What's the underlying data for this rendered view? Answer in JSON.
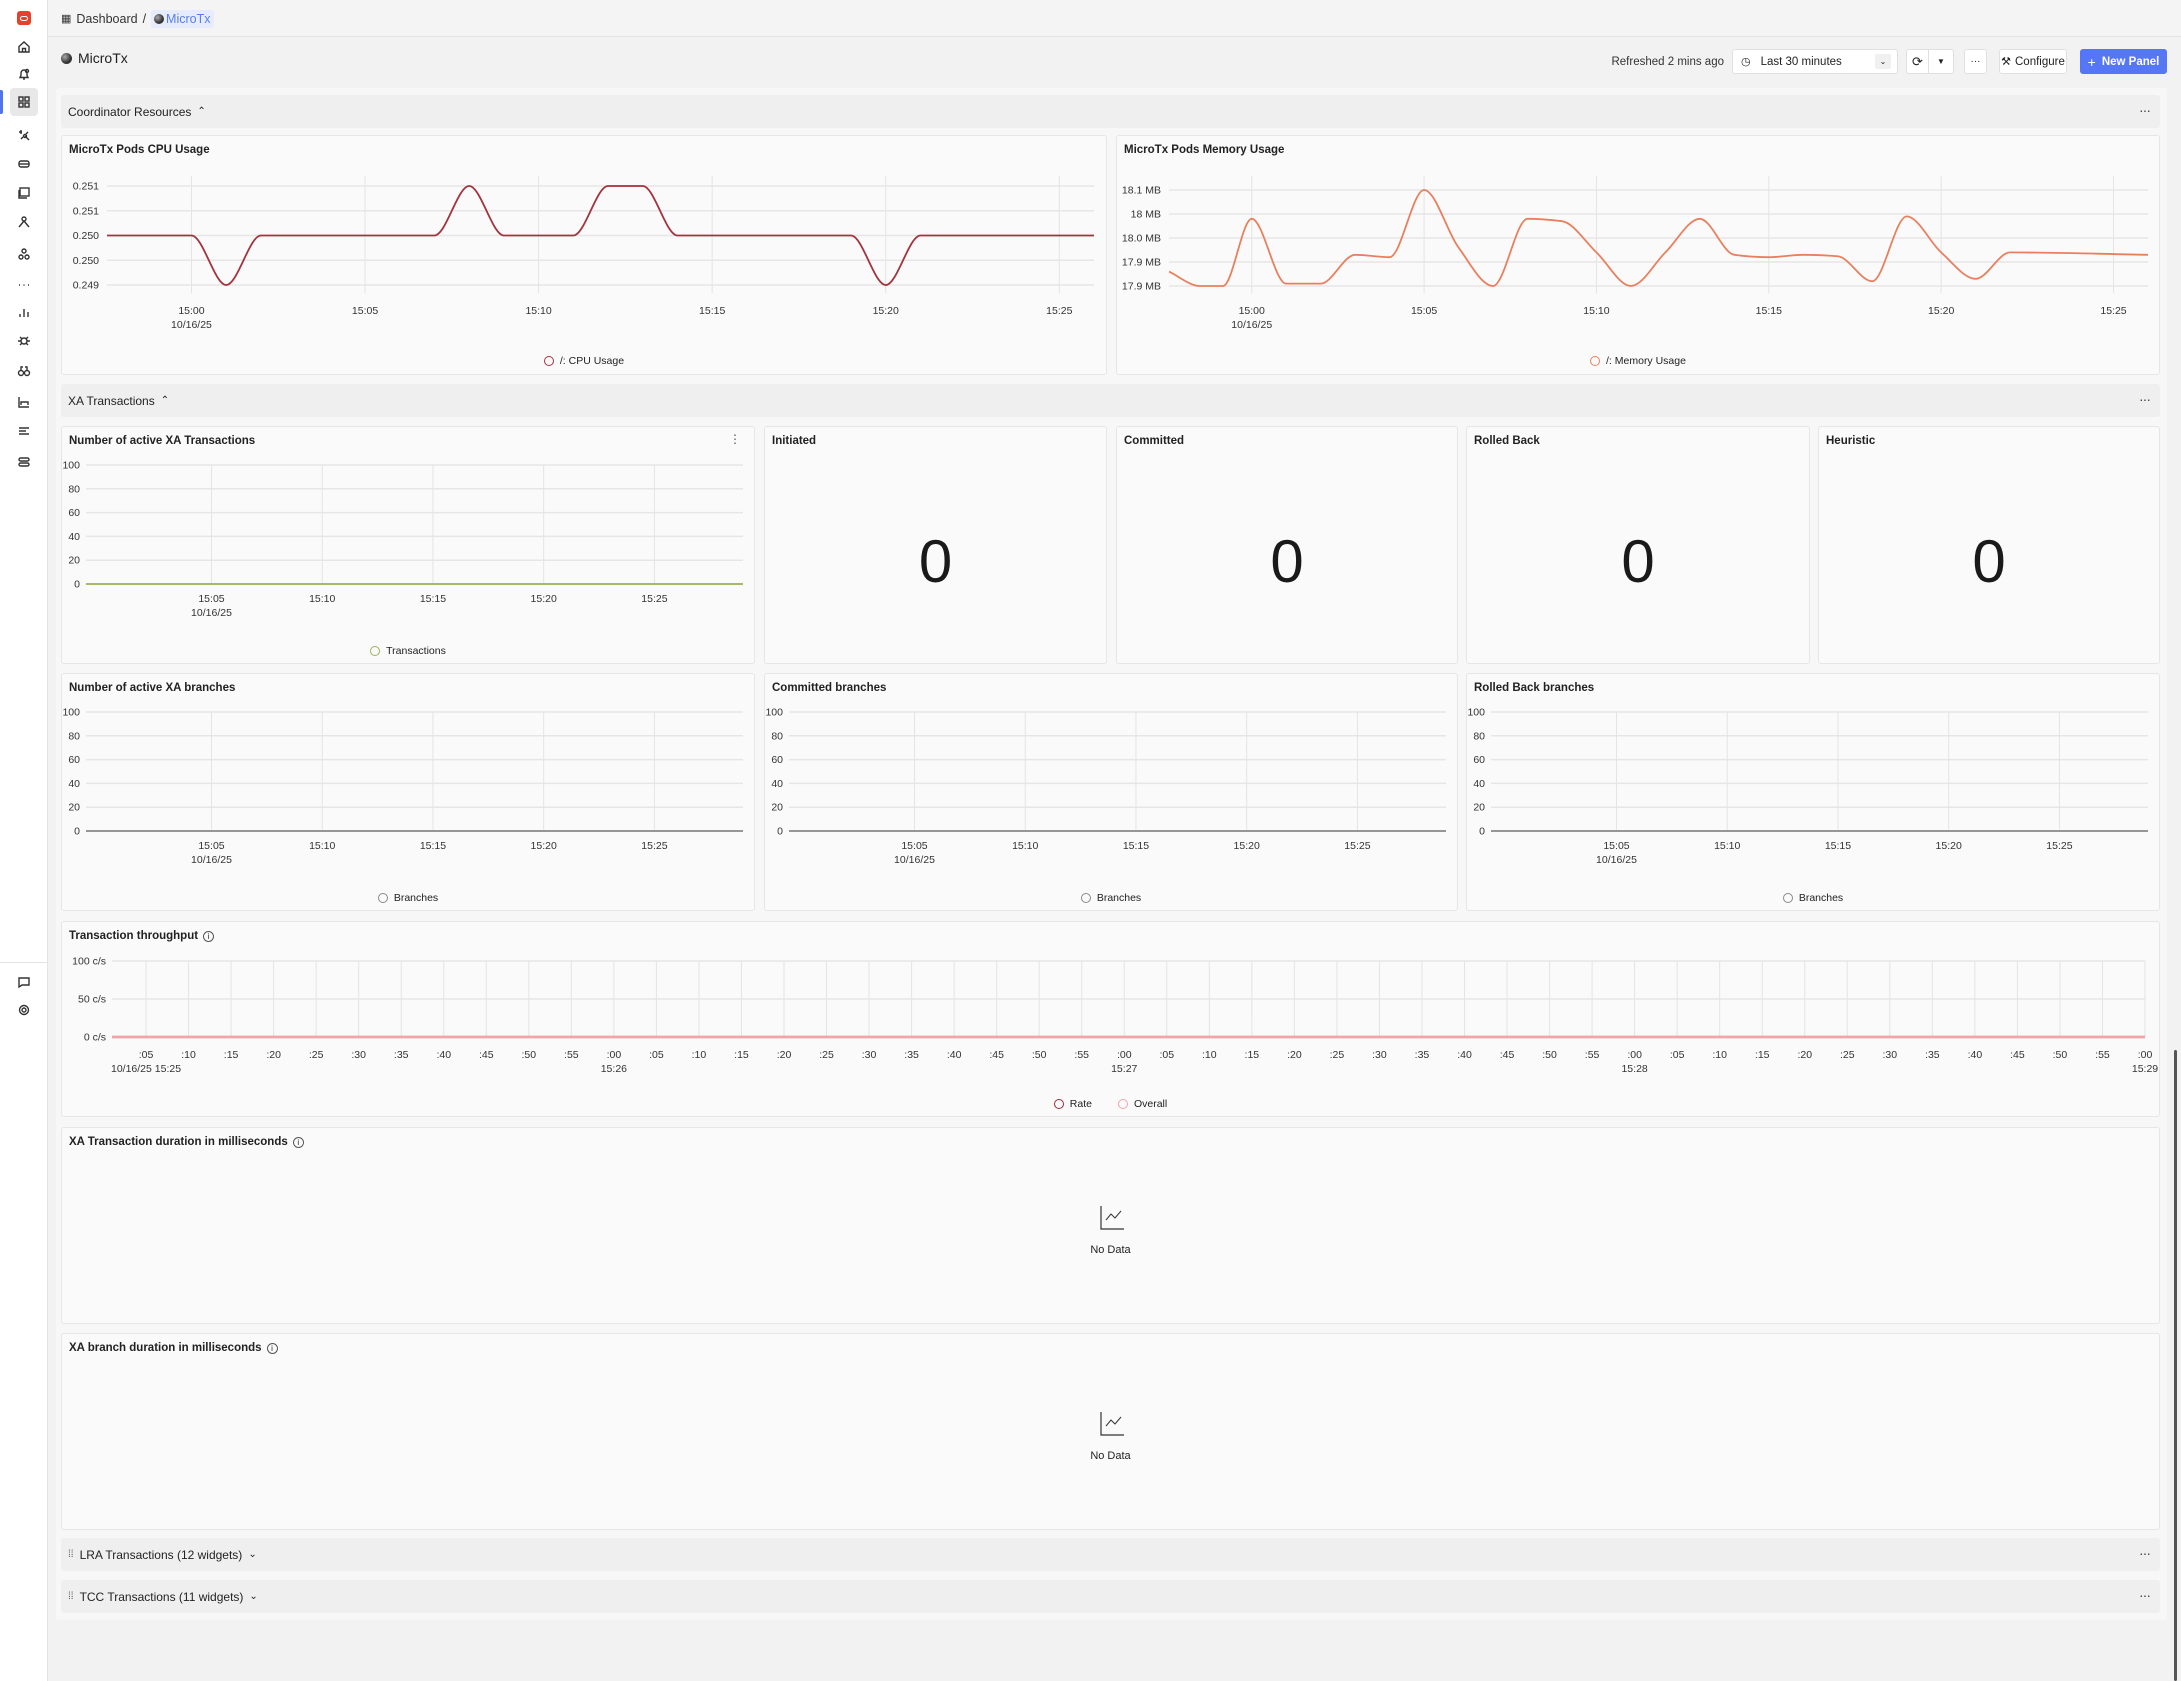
{
  "breadcrumb": {
    "root": "Dashboard",
    "separator": "/",
    "current": "MicroTx"
  },
  "page_title": "MicroTx",
  "toolbar": {
    "refreshed": "Refreshed 2 mins ago",
    "time_range": "Last 30 minutes",
    "more": "···",
    "configure": "Configure",
    "new_panel": "New Panel",
    "accent": "#5677f5"
  },
  "sidebar": {
    "items": [
      "logo",
      "home-icon",
      "alerts-icon",
      "dashboards-icon",
      "explore-icon",
      "infra-icon",
      "logs-icon",
      "traces-icon",
      "services-icon",
      "more-icon",
      "metrics-icon",
      "exceptions-icon",
      "binoculars-icon",
      "charts-icon",
      "list-icon",
      "pipelines-icon"
    ],
    "bottom": [
      "chat-icon",
      "settings-icon"
    ],
    "active": "dashboards-icon"
  },
  "rows": {
    "coordinator": "Coordinator Resources",
    "xa": "XA Transactions",
    "lra": "LRA Transactions (12 widgets)",
    "tcc": "TCC Transactions (11 widgets)",
    "more": "···"
  },
  "panels": {
    "cpu": {
      "title": "MicroTx Pods CPU Usage"
    },
    "mem": {
      "title": "MicroTx Pods Memory Usage"
    },
    "xa_active": {
      "title": "Number of active XA Transactions"
    },
    "initiated": {
      "title": "Initiated",
      "value": "0"
    },
    "committed": {
      "title": "Committed",
      "value": "0"
    },
    "rolled_back": {
      "title": "Rolled Back",
      "value": "0"
    },
    "heuristic": {
      "title": "Heuristic",
      "value": "0"
    },
    "xa_branches": {
      "title": "Number of active XA branches"
    },
    "committed_branches": {
      "title": "Committed branches"
    },
    "rolledback_branches": {
      "title": "Rolled Back branches"
    },
    "throughput": {
      "title": "Transaction throughput"
    },
    "xa_duration": {
      "title": "XA Transaction duration in milliseconds",
      "empty": "No Data"
    },
    "branch_duration": {
      "title": "XA branch duration in milliseconds",
      "empty": "No Data"
    }
  },
  "chart_data": [
    {
      "id": "cpu",
      "type": "line",
      "x_range": [
        "14:57:34",
        "15:26:00"
      ],
      "y_range": [
        0.249,
        0.251
      ],
      "y_ticks": [
        {
          "v": 0.249,
          "l": "0.249"
        },
        {
          "v": 0.2495,
          "l": "0.250"
        },
        {
          "v": 0.25,
          "l": "0.250"
        },
        {
          "v": 0.2505,
          "l": "0.251"
        },
        {
          "v": 0.251,
          "l": "0.251"
        }
      ],
      "x_ticks": [
        {
          "t": "15:00",
          "l": "15:00",
          "s": "10/16/25"
        },
        {
          "t": "15:05",
          "l": "15:05"
        },
        {
          "t": "15:10",
          "l": "15:10"
        },
        {
          "t": "15:15",
          "l": "15:15"
        },
        {
          "t": "15:20",
          "l": "15:20"
        },
        {
          "t": "15:25",
          "l": "15:25"
        }
      ],
      "series": [
        {
          "name": "/: CPU Usage",
          "color": "#a3333d",
          "points": [
            [
              "14:57:34",
              0.25
            ],
            [
              "15:00",
              0.25
            ],
            [
              "15:01",
              0.249
            ],
            [
              "15:02",
              0.25
            ],
            [
              "15:07",
              0.25
            ],
            [
              "15:08",
              0.251
            ],
            [
              "15:09",
              0.25
            ],
            [
              "15:11",
              0.25
            ],
            [
              "15:12",
              0.251
            ],
            [
              "15:13",
              0.251
            ],
            [
              "15:14",
              0.25
            ],
            [
              "15:19",
              0.25
            ],
            [
              "15:20",
              0.249
            ],
            [
              "15:21",
              0.25
            ],
            [
              "15:26",
              0.25
            ]
          ]
        }
      ]
    },
    {
      "id": "mem",
      "type": "line",
      "x_range": [
        "14:57:36",
        "15:26:00"
      ],
      "y_range": [
        17.9,
        18.1
      ],
      "y_ticks": [
        {
          "v": 17.9,
          "l": "17.9 MB"
        },
        {
          "v": 17.95,
          "l": "17.9 MB"
        },
        {
          "v": 18.0,
          "l": "18.0 MB"
        },
        {
          "v": 18.05,
          "l": "18 MB"
        },
        {
          "v": 18.1,
          "l": "18.1 MB"
        }
      ],
      "x_ticks": [
        {
          "t": "15:00",
          "l": "15:00",
          "s": "10/16/25"
        },
        {
          "t": "15:05",
          "l": "15:05"
        },
        {
          "t": "15:10",
          "l": "15:10"
        },
        {
          "t": "15:15",
          "l": "15:15"
        },
        {
          "t": "15:20",
          "l": "15:20"
        },
        {
          "t": "15:25",
          "l": "15:25"
        }
      ],
      "series": [
        {
          "name": "/: Memory Usage",
          "color": "#e8805f",
          "points": [
            [
              "14:57:36",
              17.93
            ],
            [
              "14:58:30",
              17.9
            ],
            [
              "14:59:10",
              17.9
            ],
            [
              "15:00",
              18.04
            ],
            [
              "15:01",
              17.905
            ],
            [
              "15:02",
              17.905
            ],
            [
              "15:03",
              17.965
            ],
            [
              "15:04",
              17.96
            ],
            [
              "15:05",
              18.1
            ],
            [
              "15:06",
              17.98
            ],
            [
              "15:07",
              17.9
            ],
            [
              "15:08",
              18.04
            ],
            [
              "15:09",
              18.035
            ],
            [
              "15:10",
              17.97
            ],
            [
              "15:11",
              17.9
            ],
            [
              "15:12",
              17.97
            ],
            [
              "15:13",
              18.04
            ],
            [
              "15:14",
              17.965
            ],
            [
              "15:15",
              17.96
            ],
            [
              "15:16",
              17.965
            ],
            [
              "15:17",
              17.962
            ],
            [
              "15:18",
              17.91
            ],
            [
              "15:19",
              18.045
            ],
            [
              "15:20",
              17.97
            ],
            [
              "15:21",
              17.915
            ],
            [
              "15:22",
              17.97
            ],
            [
              "15:26",
              17.965
            ]
          ]
        }
      ]
    },
    {
      "id": "xa_active",
      "type": "line",
      "x_range": [
        "14:59:20",
        "15:29:00"
      ],
      "y_range": [
        0,
        100
      ],
      "y_ticks": [
        {
          "v": 0,
          "l": "0"
        },
        {
          "v": 20,
          "l": "20"
        },
        {
          "v": 40,
          "l": "40"
        },
        {
          "v": 60,
          "l": "60"
        },
        {
          "v": 80,
          "l": "80"
        },
        {
          "v": 100,
          "l": "100"
        }
      ],
      "x_ticks": [
        {
          "t": "15:05",
          "l": "15:05",
          "s": "10/16/25"
        },
        {
          "t": "15:10",
          "l": "15:10"
        },
        {
          "t": "15:15",
          "l": "15:15"
        },
        {
          "t": "15:20",
          "l": "15:20"
        },
        {
          "t": "15:25",
          "l": "15:25"
        }
      ],
      "series": [
        {
          "name": "Transactions",
          "color": "#9bb356",
          "points": [
            [
              "14:59:20",
              0
            ],
            [
              "15:29:00",
              0
            ]
          ]
        }
      ]
    },
    {
      "id": "xa_branches",
      "type": "line",
      "x_range": [
        "14:59:20",
        "15:29:00"
      ],
      "y_range": [
        0,
        100
      ],
      "y_ticks": [
        {
          "v": 0,
          "l": "0"
        },
        {
          "v": 20,
          "l": "20"
        },
        {
          "v": 40,
          "l": "40"
        },
        {
          "v": 60,
          "l": "60"
        },
        {
          "v": 80,
          "l": "80"
        },
        {
          "v": 100,
          "l": "100"
        }
      ],
      "x_ticks": [
        {
          "t": "15:05",
          "l": "15:05",
          "s": "10/16/25"
        },
        {
          "t": "15:10",
          "l": "15:10"
        },
        {
          "t": "15:15",
          "l": "15:15"
        },
        {
          "t": "15:20",
          "l": "15:20"
        },
        {
          "t": "15:25",
          "l": "15:25"
        }
      ],
      "series": [
        {
          "name": "Branches",
          "color": "#8a8a8a",
          "points": [
            [
              "14:59:20",
              0
            ],
            [
              "15:29:00",
              0
            ]
          ]
        }
      ]
    },
    {
      "id": "committed_branches",
      "type": "line",
      "x_range": [
        "14:59:20",
        "15:29:00"
      ],
      "y_range": [
        0,
        100
      ],
      "y_ticks": [
        {
          "v": 0,
          "l": "0"
        },
        {
          "v": 20,
          "l": "20"
        },
        {
          "v": 40,
          "l": "40"
        },
        {
          "v": 60,
          "l": "60"
        },
        {
          "v": 80,
          "l": "80"
        },
        {
          "v": 100,
          "l": "100"
        }
      ],
      "x_ticks": [
        {
          "t": "15:05",
          "l": "15:05",
          "s": "10/16/25"
        },
        {
          "t": "15:10",
          "l": "15:10"
        },
        {
          "t": "15:15",
          "l": "15:15"
        },
        {
          "t": "15:20",
          "l": "15:20"
        },
        {
          "t": "15:25",
          "l": "15:25"
        }
      ],
      "series": [
        {
          "name": "Branches",
          "color": "#8a8a8a",
          "points": [
            [
              "14:59:20",
              0
            ],
            [
              "15:29:00",
              0
            ]
          ]
        }
      ]
    },
    {
      "id": "rolledback_branches",
      "type": "line",
      "x_range": [
        "14:59:20",
        "15:29:00"
      ],
      "y_range": [
        0,
        100
      ],
      "y_ticks": [
        {
          "v": 0,
          "l": "0"
        },
        {
          "v": 20,
          "l": "20"
        },
        {
          "v": 40,
          "l": "40"
        },
        {
          "v": 60,
          "l": "60"
        },
        {
          "v": 80,
          "l": "80"
        },
        {
          "v": 100,
          "l": "100"
        }
      ],
      "x_ticks": [
        {
          "t": "15:05",
          "l": "15:05",
          "s": "10/16/25"
        },
        {
          "t": "15:10",
          "l": "15:10"
        },
        {
          "t": "15:15",
          "l": "15:15"
        },
        {
          "t": "15:20",
          "l": "15:20"
        },
        {
          "t": "15:25",
          "l": "15:25"
        }
      ],
      "series": [
        {
          "name": "Branches",
          "color": "#8a8a8a",
          "points": [
            [
              "14:59:20",
              0
            ],
            [
              "15:29:00",
              0
            ]
          ]
        }
      ]
    },
    {
      "id": "throughput",
      "type": "line",
      "x_range": [
        "15:25:01",
        "15:29:00"
      ],
      "y_range": [
        0,
        100
      ],
      "y_ticks": [
        {
          "v": 0,
          "l": "0 c/s"
        },
        {
          "v": 50,
          "l": "50 c/s"
        },
        {
          "v": 100,
          "l": "100 c/s"
        }
      ],
      "x_ticks": [
        {
          "t": "15:25:05",
          "l": ":05",
          "s": "10/16/25 15:25"
        },
        {
          "t": "15:25:10",
          "l": ":10"
        },
        {
          "t": "15:25:15",
          "l": ":15"
        },
        {
          "t": "15:25:20",
          "l": ":20"
        },
        {
          "t": "15:25:25",
          "l": ":25"
        },
        {
          "t": "15:25:30",
          "l": ":30"
        },
        {
          "t": "15:25:35",
          "l": ":35"
        },
        {
          "t": "15:25:40",
          "l": ":40"
        },
        {
          "t": "15:25:45",
          "l": ":45"
        },
        {
          "t": "15:25:50",
          "l": ":50"
        },
        {
          "t": "15:25:55",
          "l": ":55"
        },
        {
          "t": "15:26:00",
          "l": ":00",
          "s": "15:26"
        },
        {
          "t": "15:26:05",
          "l": ":05"
        },
        {
          "t": "15:26:10",
          "l": ":10"
        },
        {
          "t": "15:26:15",
          "l": ":15"
        },
        {
          "t": "15:26:20",
          "l": ":20"
        },
        {
          "t": "15:26:25",
          "l": ":25"
        },
        {
          "t": "15:26:30",
          "l": ":30"
        },
        {
          "t": "15:26:35",
          "l": ":35"
        },
        {
          "t": "15:26:40",
          "l": ":40"
        },
        {
          "t": "15:26:45",
          "l": ":45"
        },
        {
          "t": "15:26:50",
          "l": ":50"
        },
        {
          "t": "15:26:55",
          "l": ":55"
        },
        {
          "t": "15:27:00",
          "l": ":00",
          "s": "15:27"
        },
        {
          "t": "15:27:05",
          "l": ":05"
        },
        {
          "t": "15:27:10",
          "l": ":10"
        },
        {
          "t": "15:27:15",
          "l": ":15"
        },
        {
          "t": "15:27:20",
          "l": ":20"
        },
        {
          "t": "15:27:25",
          "l": ":25"
        },
        {
          "t": "15:27:30",
          "l": ":30"
        },
        {
          "t": "15:27:35",
          "l": ":35"
        },
        {
          "t": "15:27:40",
          "l": ":40"
        },
        {
          "t": "15:27:45",
          "l": ":45"
        },
        {
          "t": "15:27:50",
          "l": ":50"
        },
        {
          "t": "15:27:55",
          "l": ":55"
        },
        {
          "t": "15:28:00",
          "l": ":00",
          "s": "15:28"
        },
        {
          "t": "15:28:05",
          "l": ":05"
        },
        {
          "t": "15:28:10",
          "l": ":10"
        },
        {
          "t": "15:28:15",
          "l": ":15"
        },
        {
          "t": "15:28:20",
          "l": ":20"
        },
        {
          "t": "15:28:25",
          "l": ":25"
        },
        {
          "t": "15:28:30",
          "l": ":30"
        },
        {
          "t": "15:28:35",
          "l": ":35"
        },
        {
          "t": "15:28:40",
          "l": ":40"
        },
        {
          "t": "15:28:45",
          "l": ":45"
        },
        {
          "t": "15:28:50",
          "l": ":50"
        },
        {
          "t": "15:28:55",
          "l": ":55"
        },
        {
          "t": "15:29:00",
          "l": ":00",
          "s": "15:29"
        }
      ],
      "series": [
        {
          "name": "Rate",
          "color": "#9b2b35",
          "points": [
            [
              "15:25:01",
              0
            ],
            [
              "15:29:00",
              0
            ]
          ]
        },
        {
          "name": "Overall",
          "color": "#f5a3a8",
          "points": [
            [
              "15:25:01",
              0
            ],
            [
              "15:29:00",
              0
            ]
          ]
        }
      ]
    }
  ]
}
